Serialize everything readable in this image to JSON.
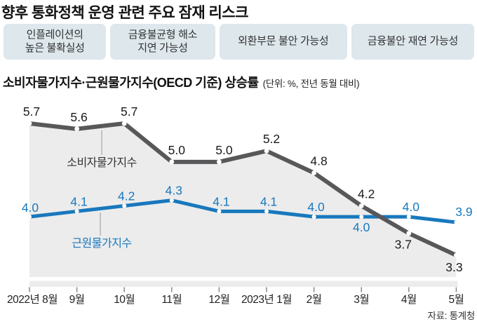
{
  "page_title": "향후 통화정책 운영 관련 주요 잠재 리스크",
  "risk_boxes": [
    {
      "label": "인플레이션의\n높은 불확실성"
    },
    {
      "label": "금융불균형 해소\n지연 가능성"
    },
    {
      "label": "외환부문 불안 가능성"
    },
    {
      "label": "금융불안 재연 가능성"
    }
  ],
  "chart_data": {
    "type": "line",
    "title": "소비자물가지수·근원물가지수(OECD 기준) 상승률",
    "unit_note": "(단위: %, 전년 동월 대비)",
    "categories": [
      "2022년 8월",
      "9월",
      "10월",
      "11월",
      "12월",
      "2023년 1월",
      "2월",
      "3월",
      "4월",
      "5월"
    ],
    "series": [
      {
        "name": "소비자물가지수",
        "color": "#58585a",
        "values": [
          5.7,
          5.6,
          5.7,
          5.0,
          5.0,
          5.2,
          4.8,
          4.2,
          3.7,
          3.3
        ],
        "area_fill": true,
        "label_below_indices": [
          8,
          9
        ]
      },
      {
        "name": "근원물가지수",
        "color": "#1878bd",
        "values": [
          4.0,
          4.1,
          4.2,
          4.3,
          4.1,
          4.1,
          4.0,
          4.0,
          4.0,
          3.9
        ],
        "area_fill": false,
        "label_below_indices": [
          7
        ]
      }
    ],
    "value_range_shown": [
      3.3,
      5.7
    ],
    "grid": false,
    "legend_position": "inline-labels-with-leader-lines",
    "source": "자료: 통계청",
    "colors": {
      "area_fill": "#ececec",
      "axis_band": "#ececec",
      "tick": "#888888",
      "value_label_dark": "#1a1a1a",
      "marker": "#ffffff"
    }
  }
}
